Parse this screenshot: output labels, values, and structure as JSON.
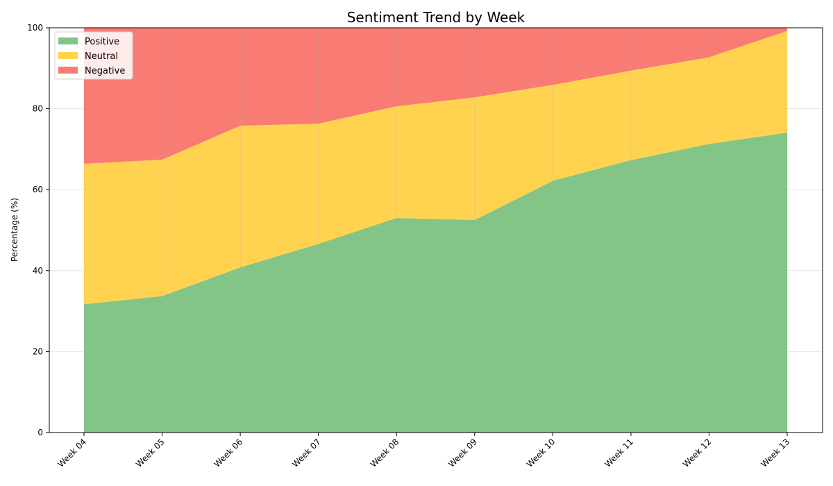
{
  "chart_data": {
    "type": "area",
    "stacked": true,
    "title": "Sentiment Trend by Week",
    "xlabel": "",
    "ylabel": "Percentage (%)",
    "ylim": [
      0,
      100
    ],
    "yticks": [
      0,
      20,
      40,
      60,
      80,
      100
    ],
    "grid": true,
    "legend_position": "top-left",
    "categories": [
      "Week 04",
      "Week 05",
      "Week 06",
      "Week 07",
      "Week 08",
      "Week 09",
      "Week 10",
      "Week 11",
      "Week 12",
      "Week 13"
    ],
    "series": [
      {
        "name": "Positive",
        "color": "#82c586",
        "values": [
          31.7,
          33.7,
          40.8,
          46.6,
          53.0,
          52.5,
          62.2,
          67.3,
          71.3,
          74.1
        ]
      },
      {
        "name": "Neutral",
        "color": "#ffd34f",
        "values": [
          34.7,
          33.7,
          35.0,
          29.7,
          27.6,
          30.3,
          23.7,
          22.1,
          21.4,
          25.1
        ]
      },
      {
        "name": "Negative",
        "color": "#f87c73",
        "values": [
          33.6,
          32.6,
          24.2,
          23.7,
          19.4,
          17.2,
          14.1,
          10.6,
          7.3,
          0.8
        ]
      }
    ]
  }
}
